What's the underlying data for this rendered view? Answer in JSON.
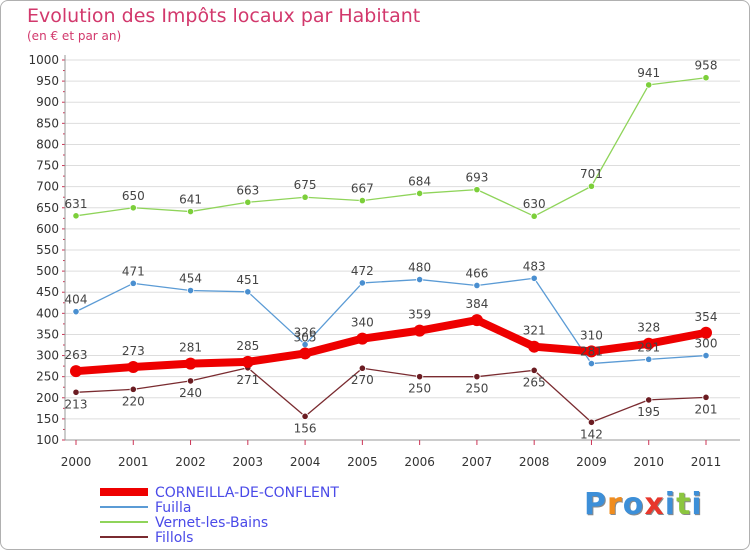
{
  "chart_data": {
    "type": "line",
    "title": "Evolution des Impôts locaux par Habitant",
    "subtitle": "(en € et par an)",
    "xlabel": "",
    "ylabel": "",
    "x": [
      "2000",
      "2001",
      "2002",
      "2003",
      "2004",
      "2005",
      "2006",
      "2007",
      "2008",
      "2009",
      "2010",
      "2011"
    ],
    "ylim": [
      100,
      1000
    ],
    "yticks": [
      100,
      150,
      200,
      250,
      300,
      350,
      400,
      450,
      500,
      550,
      600,
      650,
      700,
      750,
      800,
      850,
      900,
      950,
      1000
    ],
    "grid": "horizontal",
    "series": [
      {
        "name": "CORNEILLA-DE-CONFLENT",
        "color": "#ee0000",
        "values": [
          263,
          273,
          281,
          285,
          305,
          340,
          359,
          384,
          321,
          310,
          328,
          354
        ]
      },
      {
        "name": "Fuilla",
        "color": "#5b9bd5",
        "values": [
          404,
          471,
          454,
          451,
          326,
          472,
          480,
          466,
          483,
          281,
          291,
          300
        ]
      },
      {
        "name": "Vernet-les-Bains",
        "color": "#8fd45a",
        "values": [
          631,
          650,
          641,
          663,
          675,
          667,
          684,
          693,
          630,
          701,
          941,
          958
        ]
      },
      {
        "name": "Fillols",
        "color": "#6b1c22",
        "values": [
          213,
          220,
          240,
          271,
          156,
          270,
          250,
          250,
          265,
          142,
          195,
          201
        ]
      }
    ],
    "legend_position": "bottom-left"
  },
  "logo": {
    "letters": [
      "P",
      "r",
      "o",
      "x",
      "i",
      "t",
      "i"
    ],
    "colors": [
      "#3d8fd8",
      "#f08c1e",
      "#3d8fd8",
      "#e8372c",
      "#3d8fd8",
      "#8cc63f",
      "#3d8fd8"
    ]
  }
}
